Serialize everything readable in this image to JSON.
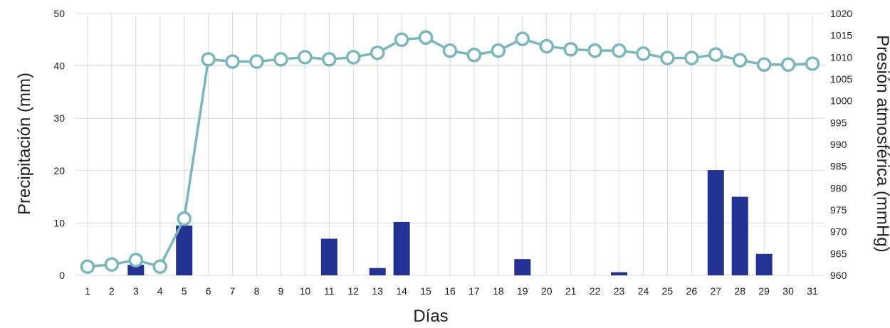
{
  "chart_data": {
    "type": "bar+line",
    "title": "",
    "xlabel": "Días",
    "ylabel_left": "Precipitación (mm)",
    "ylabel_right": "Presión atmosférica (mmHg)",
    "ylim_left": [
      0,
      50
    ],
    "ylim_right": [
      960,
      1020
    ],
    "yticks_left": [
      0,
      10,
      20,
      30,
      40,
      50
    ],
    "yticks_right": [
      960,
      965,
      970,
      975,
      980,
      985,
      990,
      995,
      1000,
      1005,
      1010,
      1015,
      1020
    ],
    "grid": true,
    "categories": [
      "1",
      "2",
      "3",
      "4",
      "5",
      "6",
      "7",
      "8",
      "9",
      "10",
      "11",
      "12",
      "13",
      "14",
      "15",
      "16",
      "17",
      "18",
      "19",
      "20",
      "21",
      "22",
      "23",
      "24",
      "25",
      "26",
      "27",
      "28",
      "29",
      "30",
      "31"
    ],
    "series": [
      {
        "type": "bar",
        "axis": "left",
        "color": "#233192",
        "values": [
          0,
          0,
          2.0,
          0,
          9.5,
          0,
          0,
          0,
          0,
          0,
          7.0,
          0,
          1.4,
          10.2,
          0,
          0,
          0,
          0,
          3.1,
          0,
          0,
          0,
          0.6,
          0,
          0,
          0,
          20.1,
          15.0,
          4.1,
          0,
          0
        ]
      },
      {
        "type": "line",
        "axis": "right",
        "color": "#7ab7bd",
        "values": [
          962,
          962.5,
          963.5,
          962,
          973,
          1009.5,
          1009,
          1009,
          1009.5,
          1010,
          1009.5,
          1010,
          1011,
          1014,
          1014.5,
          1011.5,
          1010.5,
          1011.5,
          1014.2,
          1012.5,
          1011.8,
          1011.5,
          1011.5,
          1010.8,
          1009.8,
          1009.8,
          1010.6,
          1009.3,
          1008.3,
          1008.3,
          1008.5
        ]
      }
    ]
  }
}
